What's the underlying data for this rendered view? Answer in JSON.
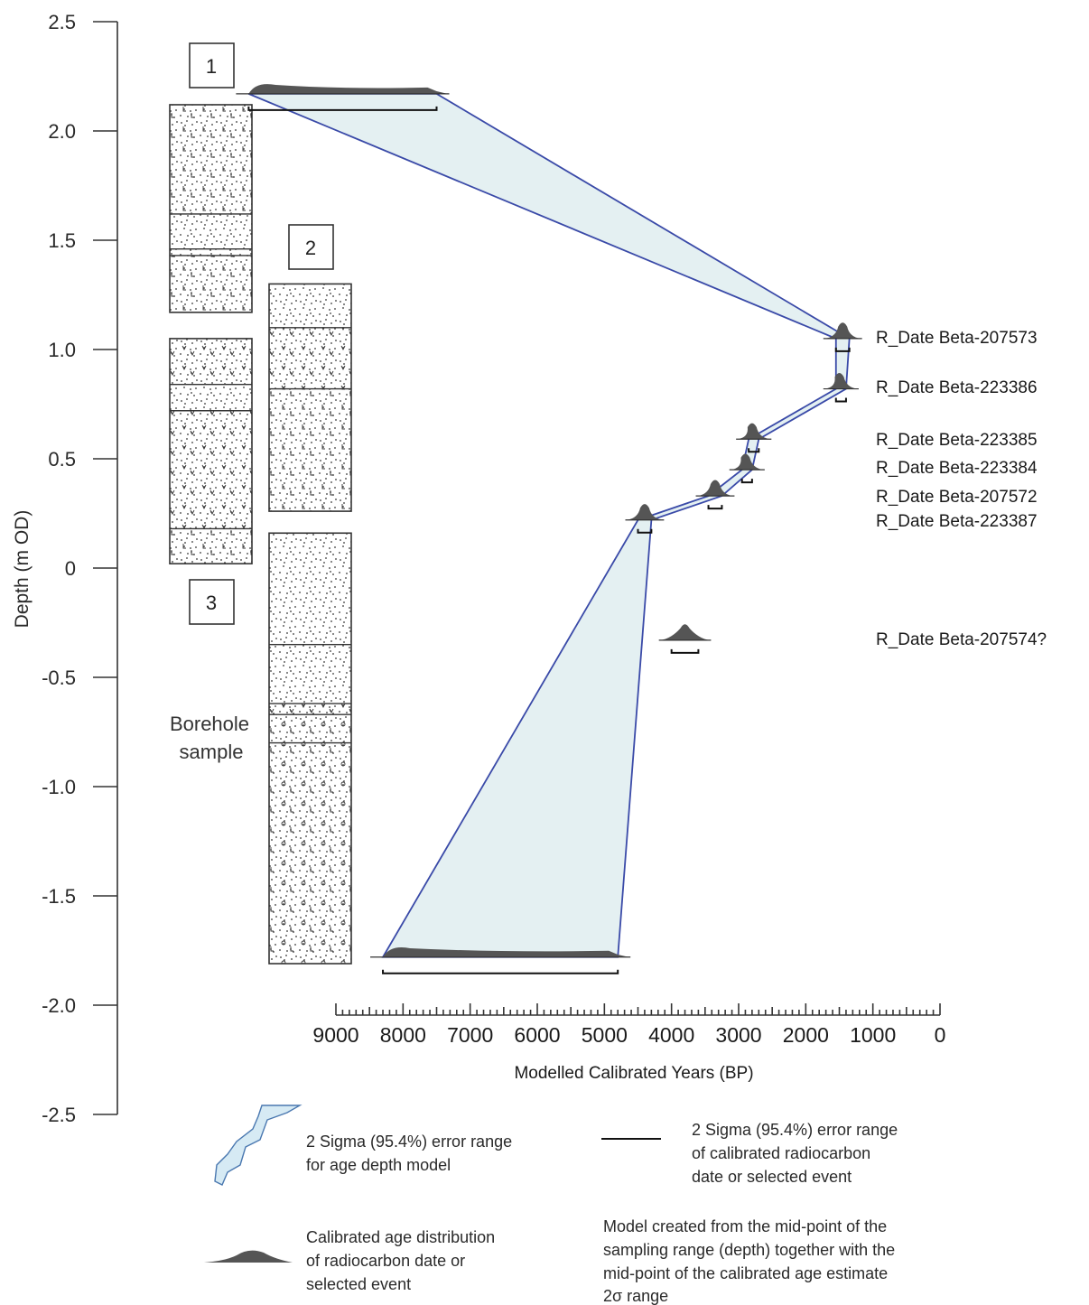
{
  "chart_data": {
    "type": "age-depth model",
    "ylabel": "Depth (m OD)",
    "ylim": [
      -2.5,
      2.5
    ],
    "yticks": [
      "2.5",
      "2.0",
      "1.5",
      "1.0",
      "0.5",
      "0",
      "-0.5",
      "-1.0",
      "-1.5",
      "-2.0",
      "-2.5"
    ],
    "xlabel": "Modelled Calibrated Years (BP)",
    "xlim": [
      9000,
      0
    ],
    "x_reversed": true,
    "xticks": [
      "9000",
      "8000",
      "7000",
      "6000",
      "5000",
      "4000",
      "3000",
      "2000",
      "1000",
      "0"
    ],
    "dates": [
      {
        "label": "",
        "depth": 2.17,
        "age_mid": 8000,
        "range": [
          10300,
          7500
        ],
        "in_model": true
      },
      {
        "label": "R_Date Beta-207573",
        "depth": 1.05,
        "age_mid": 1450,
        "range": [
          1550,
          1350
        ],
        "in_model": true
      },
      {
        "label": "R_Date Beta-223386",
        "depth": 0.82,
        "age_mid": 1500,
        "range": [
          1550,
          1400
        ],
        "in_model": true
      },
      {
        "label": "R_Date Beta-223385",
        "depth": 0.59,
        "age_mid": 2800,
        "range": [
          2850,
          2700
        ],
        "in_model": true
      },
      {
        "label": "R_Date Beta-223384",
        "depth": 0.45,
        "age_mid": 2900,
        "range": [
          2950,
          2800
        ],
        "in_model": true
      },
      {
        "label": "R_Date Beta-207572",
        "depth": 0.33,
        "age_mid": 3350,
        "range": [
          3450,
          3250
        ],
        "in_model": true
      },
      {
        "label": "R_Date Beta-223387",
        "depth": 0.22,
        "age_mid": 4400,
        "range": [
          4500,
          4300
        ],
        "in_model": true
      },
      {
        "label": "R_Date Beta-207574?",
        "depth": -0.33,
        "age_mid": 3800,
        "range": [
          4000,
          3600
        ],
        "in_model": false
      },
      {
        "label": "",
        "depth": -1.78,
        "age_mid": 6600,
        "range": [
          8300,
          4800
        ],
        "in_model": true
      }
    ],
    "cores": [
      {
        "number": "1",
        "top": 2.12,
        "bottom": 1.17,
        "boundaries": [
          1.62,
          1.46,
          1.43
        ]
      },
      {
        "number": "2",
        "top": 1.3,
        "bottom": 0.26,
        "boundaries": [
          1.1,
          0.82
        ]
      },
      {
        "number": "3",
        "top": 1.05,
        "bottom": 0.02,
        "boundaries": [
          0.84,
          0.72,
          0.18
        ]
      },
      {
        "number": "",
        "top": 0.16,
        "bottom": -1.81,
        "boundaries": [
          -0.35,
          -0.62,
          -0.67,
          -0.8
        ]
      }
    ]
  },
  "annotations": {
    "borehole_line1": "Borehole",
    "borehole_line2": "sample"
  },
  "legend": {
    "envelope": [
      "2 Sigma (95.4%) error range",
      "for age depth model"
    ],
    "range_bar": [
      "2 Sigma (95.4%) error range",
      "of calibrated radiocarbon",
      "date or selected event"
    ],
    "distribution": [
      "Calibrated age distribution",
      "of radiocarbon date or",
      "selected event"
    ],
    "note": [
      "Model created from the mid-point of the",
      "sampling range (depth) together with the",
      "mid-point of the calibrated age estimate",
      "2σ range"
    ]
  },
  "colors": {
    "envelope_fill": "#e4f0f2",
    "envelope_stroke": "#3a4aa8",
    "distribution": "#555555",
    "legend_envelope_fill": "#d6eaf4",
    "legend_envelope_stroke": "#4a78b0"
  }
}
